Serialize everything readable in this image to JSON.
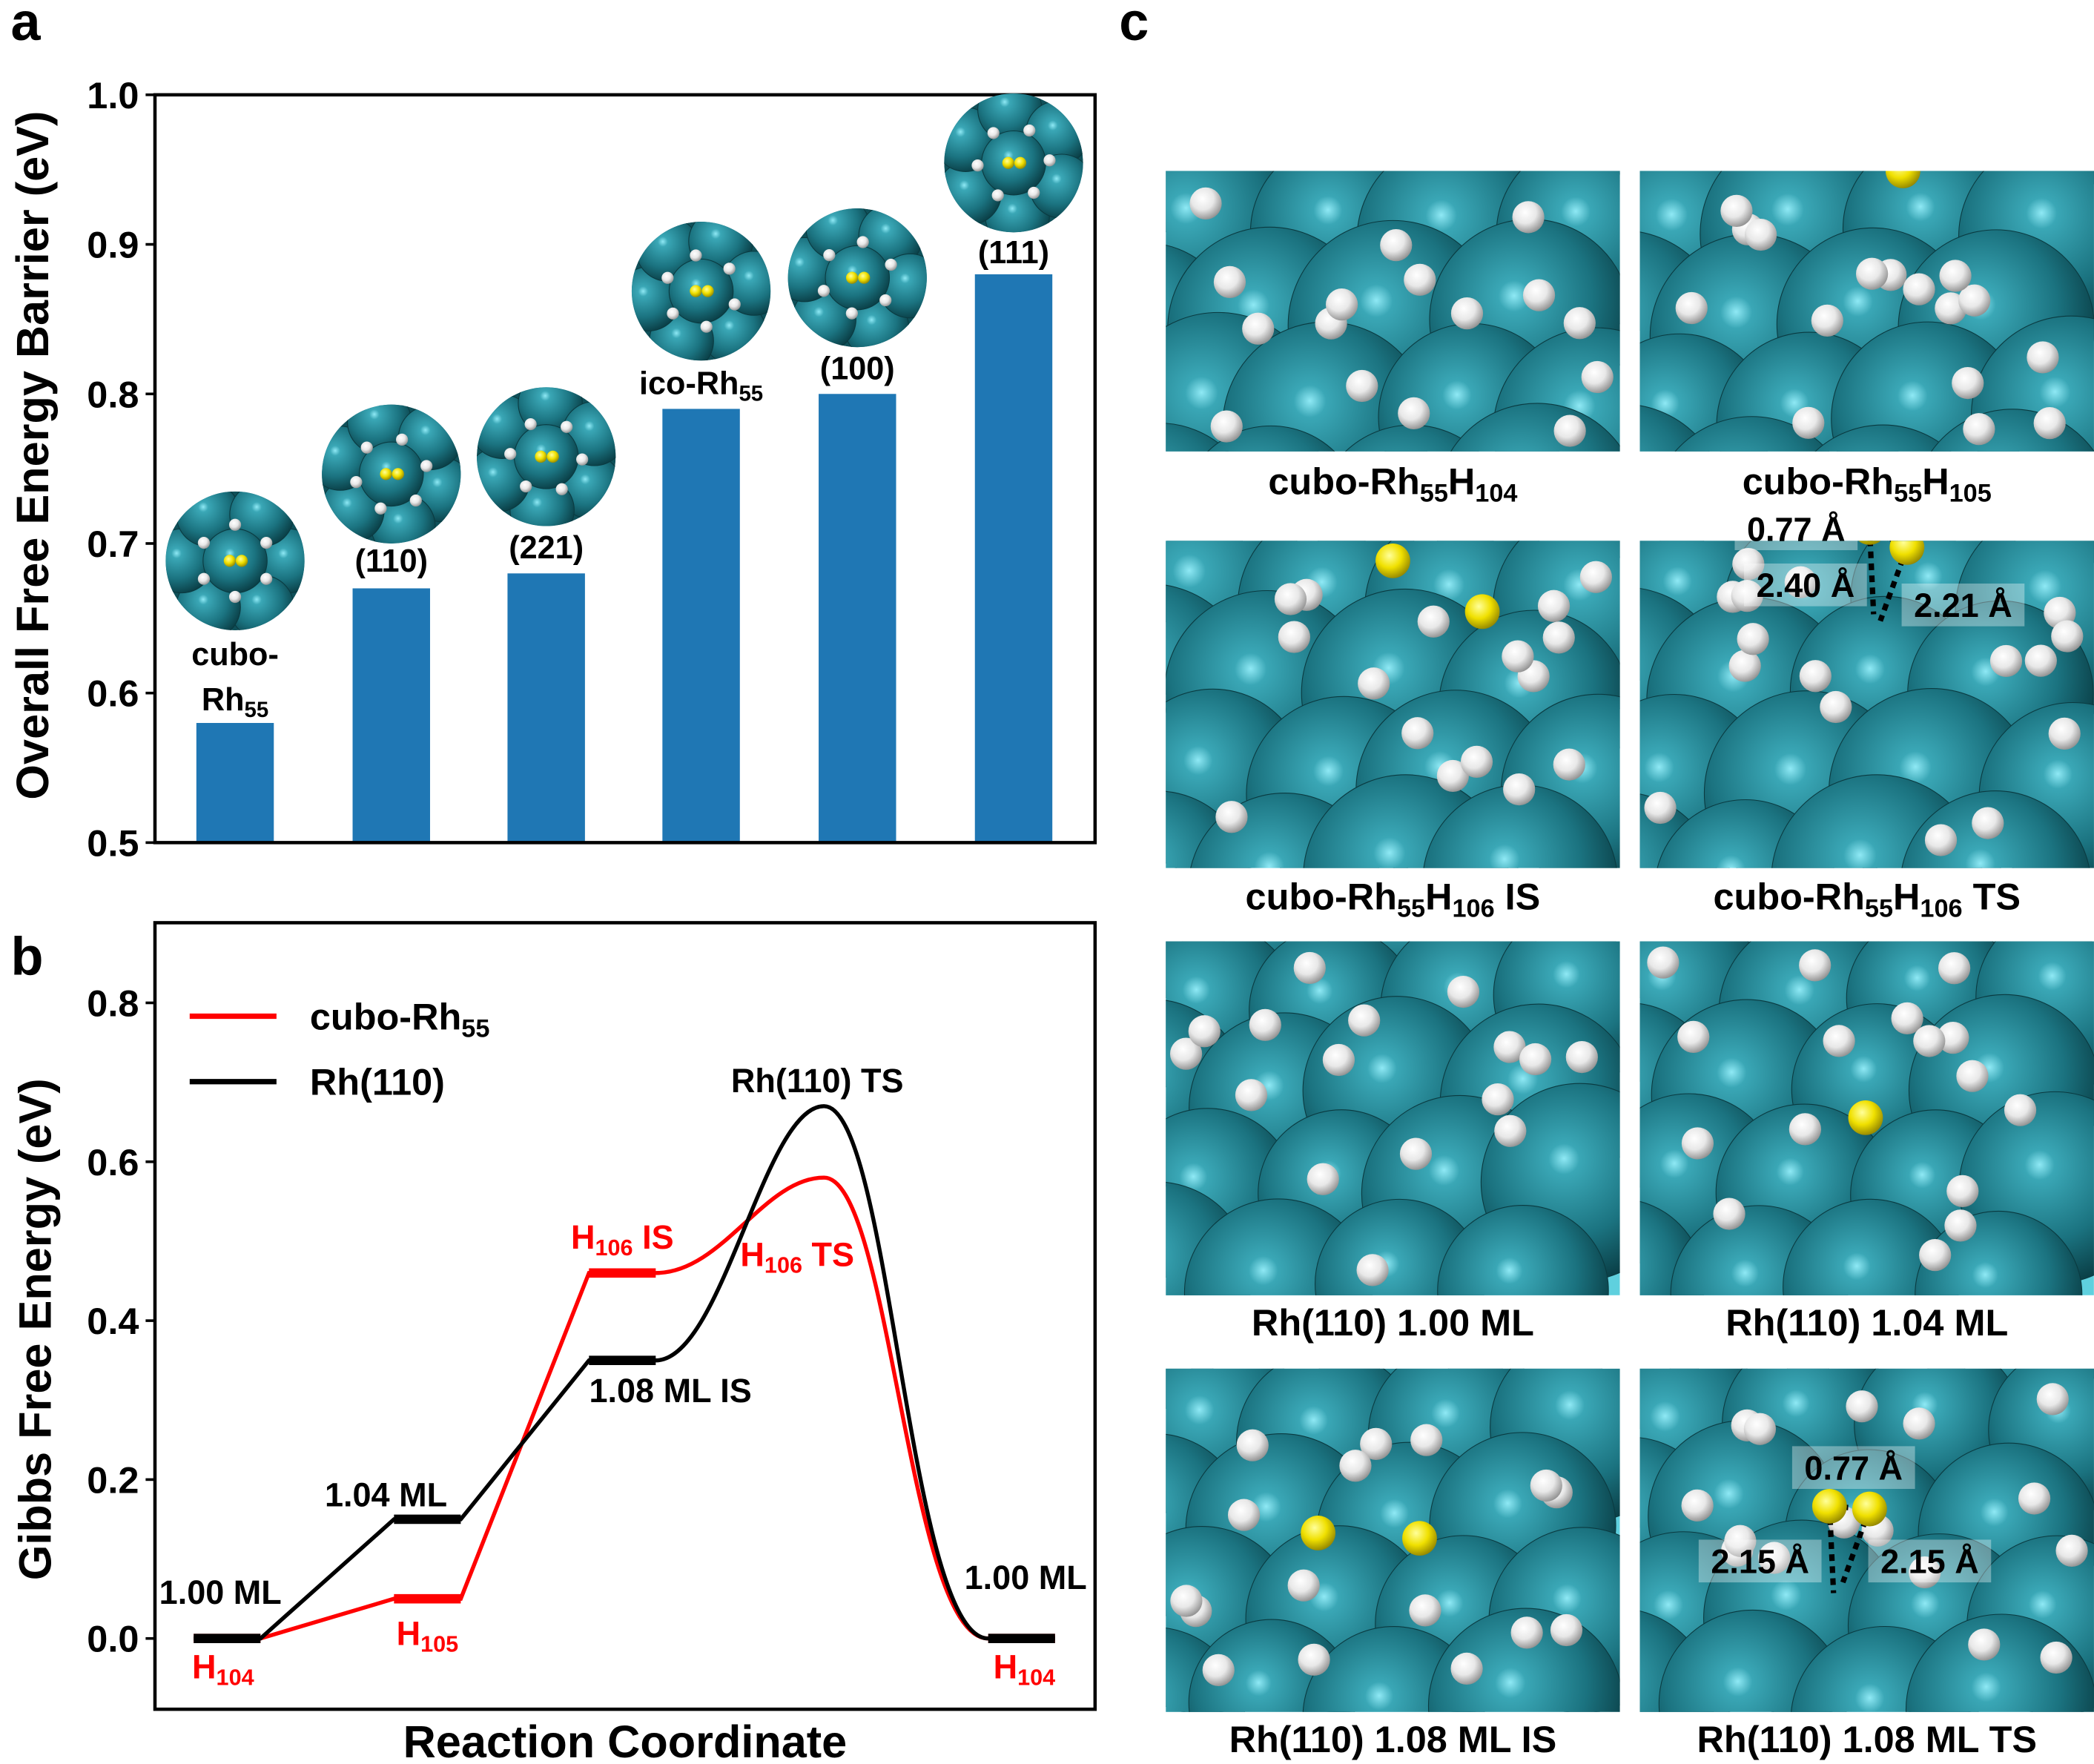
{
  "panel_letters": [
    "a",
    "b",
    "c"
  ],
  "chart_data": [
    {
      "type": "bar",
      "panel": "a",
      "ylabel": "Overall Free Energy Barrier (eV)",
      "xlabel": "",
      "ylim": [
        0.5,
        1.0
      ],
      "yticks": [
        "0.5",
        "0.6",
        "0.7",
        "0.8",
        "0.9",
        "1.0"
      ],
      "categories": [
        [
          {
            "t": "cubo-"
          },
          {
            "br": true
          },
          {
            "t": "Rh"
          },
          {
            "sub": "55"
          }
        ],
        [
          {
            "t": "(110)"
          }
        ],
        [
          {
            "t": "(221)"
          }
        ],
        [
          {
            "t": "ico-Rh"
          },
          {
            "sub": "55"
          }
        ],
        [
          {
            "t": "(100)"
          }
        ],
        [
          {
            "t": "(111)"
          }
        ]
      ],
      "values": [
        0.58,
        0.67,
        0.68,
        0.79,
        0.8,
        0.88
      ],
      "bar_color": "#1f77b4",
      "grid": false
    },
    {
      "type": "line",
      "panel": "b",
      "ylabel": "Gibbs Free Energy (eV)",
      "xlabel": "Reaction Coordinate",
      "ylim": [
        -0.09,
        0.85
      ],
      "yticks": [
        "0.0",
        "0.2",
        "0.4",
        "0.6",
        "0.8"
      ],
      "legend_position": "top-left",
      "grid": false,
      "series": [
        {
          "name": [
            {
              "t": "cubo-Rh"
            },
            {
              "sub": "55"
            }
          ],
          "color": "#ff0000",
          "values": [
            0.0,
            0.05,
            0.46,
            0.58,
            0.0
          ]
        },
        {
          "name": [
            {
              "t": "Rh(110)"
            }
          ],
          "color": "#000000",
          "values": [
            0.0,
            0.15,
            0.35,
            0.67,
            0.0
          ]
        }
      ],
      "annotations": [
        {
          "text": [
            {
              "t": "Rh(110) TS"
            }
          ],
          "color": "#000000"
        },
        {
          "text": [
            {
              "t": "H"
            },
            {
              "sub": "106"
            },
            {
              "t": " IS"
            }
          ],
          "color": "#ff0000"
        },
        {
          "text": [
            {
              "t": "H"
            },
            {
              "sub": "106"
            },
            {
              "t": " TS"
            }
          ],
          "color": "#ff0000"
        },
        {
          "text": [
            {
              "t": "1.08 ML IS"
            }
          ],
          "color": "#000000"
        },
        {
          "text": [
            {
              "t": "1.04 ML"
            }
          ],
          "color": "#000000"
        },
        {
          "text": [
            {
              "t": "1.00 ML"
            }
          ],
          "color": "#000000"
        },
        {
          "text": [
            {
              "t": "1.00 ML"
            }
          ],
          "color": "#000000"
        },
        {
          "text": [
            {
              "t": "H"
            },
            {
              "sub": "105"
            }
          ],
          "color": "#ff0000"
        },
        {
          "text": [
            {
              "t": "H"
            },
            {
              "sub": "104"
            }
          ],
          "color": "#ff0000"
        },
        {
          "text": [
            {
              "t": "H"
            },
            {
              "sub": "104"
            }
          ],
          "color": "#ff0000"
        }
      ]
    }
  ],
  "panel_c": {
    "images": [
      {
        "label": [
          {
            "t": "cubo-Rh"
          },
          {
            "sub": "55"
          },
          {
            "t": "H"
          },
          {
            "sub": "104"
          }
        ],
        "distances": []
      },
      {
        "label": [
          {
            "t": "cubo-Rh"
          },
          {
            "sub": "55"
          },
          {
            "t": "H"
          },
          {
            "sub": "105"
          }
        ],
        "distances": []
      },
      {
        "label": [
          {
            "t": "cubo-Rh"
          },
          {
            "sub": "55"
          },
          {
            "t": "H"
          },
          {
            "sub": "106"
          },
          {
            "t": " IS"
          }
        ],
        "distances": []
      },
      {
        "label": [
          {
            "t": "cubo-Rh"
          },
          {
            "sub": "55"
          },
          {
            "t": "H"
          },
          {
            "sub": "106"
          },
          {
            "t": " TS"
          }
        ],
        "distances": [
          "0.77 Å",
          "2.40 Å",
          "2.21 Å"
        ]
      },
      {
        "label": [
          {
            "t": "Rh(110) 1.00 ML"
          }
        ],
        "distances": []
      },
      {
        "label": [
          {
            "t": "Rh(110) 1.04 ML"
          }
        ],
        "distances": []
      },
      {
        "label": [
          {
            "t": "Rh(110) 1.08 ML IS"
          }
        ],
        "distances": []
      },
      {
        "label": [
          {
            "t": "Rh(110) 1.08 ML TS"
          }
        ],
        "distances": [
          "0.77 Å",
          "2.15 Å",
          "2.15 Å"
        ]
      }
    ],
    "colors": {
      "rh": "#1f7f8c",
      "h": "#ffffff",
      "h_highlight": "#f2e600"
    }
  }
}
